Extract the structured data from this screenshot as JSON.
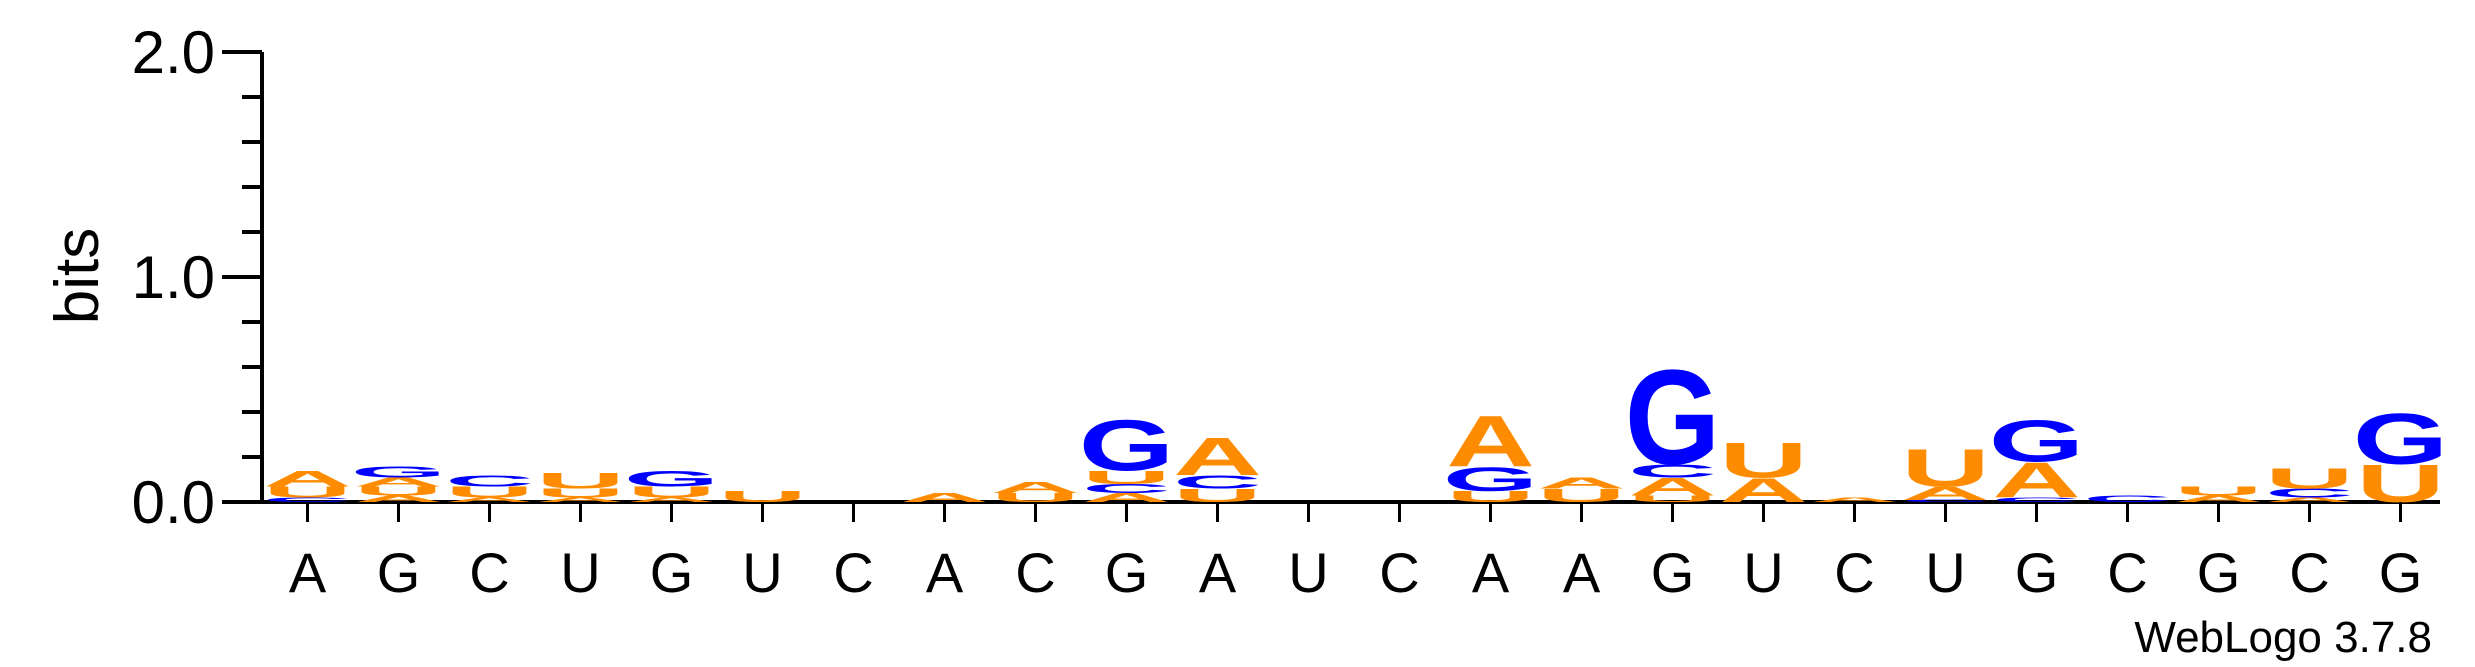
{
  "chart_data": {
    "type": "sequence-logo",
    "ylabel": "bits",
    "ylim": [
      0,
      2.0
    ],
    "yticks": [
      "0.0",
      "1.0",
      "2.0"
    ],
    "colors": {
      "A": "#ff8c00",
      "U": "#ff8c00",
      "G": "#0000ff",
      "C": "#0000ff"
    },
    "credit": "WebLogo 3.7.8",
    "positions": [
      {
        "label": "A",
        "stack": [
          [
            "C",
            0.02
          ],
          [
            "U",
            0.05
          ],
          [
            "A",
            0.07
          ]
        ]
      },
      {
        "label": "G",
        "stack": [
          [
            "A",
            0.03
          ],
          [
            "U",
            0.04
          ],
          [
            "A",
            0.04
          ],
          [
            "G",
            0.05
          ]
        ]
      },
      {
        "label": "C",
        "stack": [
          [
            "A",
            0.02
          ],
          [
            "U",
            0.05
          ],
          [
            "C",
            0.05
          ]
        ]
      },
      {
        "label": "U",
        "stack": [
          [
            "A",
            0.02
          ],
          [
            "U",
            0.04
          ],
          [
            "U",
            0.07
          ]
        ]
      },
      {
        "label": "G",
        "stack": [
          [
            "A",
            0.02
          ],
          [
            "U",
            0.05
          ],
          [
            "G",
            0.07
          ]
        ]
      },
      {
        "label": "U",
        "stack": [
          [
            "U",
            0.05
          ]
        ]
      },
      {
        "label": "C",
        "stack": []
      },
      {
        "label": "A",
        "stack": [
          [
            "A",
            0.04
          ]
        ]
      },
      {
        "label": "C",
        "stack": [
          [
            "U",
            0.04
          ],
          [
            "A",
            0.05
          ]
        ]
      },
      {
        "label": "G",
        "stack": [
          [
            "A",
            0.04
          ],
          [
            "C",
            0.04
          ],
          [
            "U",
            0.06
          ],
          [
            "G",
            0.23
          ]
        ]
      },
      {
        "label": "A",
        "stack": [
          [
            "U",
            0.06
          ],
          [
            "C",
            0.06
          ],
          [
            "A",
            0.17
          ]
        ]
      },
      {
        "label": "U",
        "stack": []
      },
      {
        "label": "C",
        "stack": []
      },
      {
        "label": "A",
        "stack": [
          [
            "U",
            0.05
          ],
          [
            "G",
            0.11
          ],
          [
            "A",
            0.23
          ]
        ]
      },
      {
        "label": "A",
        "stack": [
          [
            "U",
            0.06
          ],
          [
            "A",
            0.05
          ]
        ]
      },
      {
        "label": "G",
        "stack": [
          [
            "U",
            0.03
          ],
          [
            "A",
            0.08
          ],
          [
            "C",
            0.06
          ],
          [
            "G",
            0.43
          ]
        ]
      },
      {
        "label": "U",
        "stack": [
          [
            "A",
            0.11
          ],
          [
            "U",
            0.16
          ]
        ]
      },
      {
        "label": "C",
        "stack": [
          [
            "A",
            0.02
          ]
        ]
      },
      {
        "label": "U",
        "stack": [
          [
            "C",
            0.01
          ],
          [
            "A",
            0.06
          ],
          [
            "U",
            0.17
          ]
        ]
      },
      {
        "label": "G",
        "stack": [
          [
            "C",
            0.02
          ],
          [
            "A",
            0.16
          ],
          [
            "G",
            0.19
          ]
        ]
      },
      {
        "label": "C",
        "stack": [
          [
            "C",
            0.03
          ]
        ]
      },
      {
        "label": "G",
        "stack": [
          [
            "A",
            0.03
          ],
          [
            "U",
            0.04
          ]
        ]
      },
      {
        "label": "C",
        "stack": [
          [
            "A",
            0.02
          ],
          [
            "C",
            0.04
          ],
          [
            "U",
            0.09
          ]
        ]
      },
      {
        "label": "G",
        "stack": [
          [
            "U",
            0.17
          ],
          [
            "G",
            0.23
          ]
        ]
      }
    ]
  }
}
